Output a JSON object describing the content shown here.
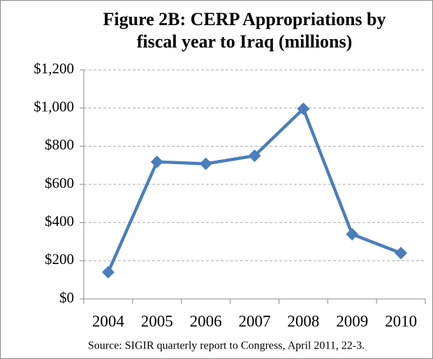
{
  "chart_data": {
    "type": "line",
    "title": [
      "Figure 2B: CERP Appropriations by",
      "fiscal year to Iraq (millions)"
    ],
    "categories": [
      "2004",
      "2005",
      "2006",
      "2007",
      "2008",
      "2009",
      "2010"
    ],
    "series": [
      {
        "name": "CERP Appropriations",
        "color": "#4a7ebb",
        "values": [
          140,
          718,
          708,
          750,
          996,
          339,
          240
        ]
      }
    ],
    "ylim": [
      0,
      1200
    ],
    "yticks": [
      {
        "value": 0,
        "label": "$0"
      },
      {
        "value": 200,
        "label": "$200"
      },
      {
        "value": 400,
        "label": "$400"
      },
      {
        "value": 600,
        "label": "$600"
      },
      {
        "value": 800,
        "label": "$800"
      },
      {
        "value": 1000,
        "label": "$1,000"
      },
      {
        "value": 1200,
        "label": "$1,200"
      }
    ],
    "grid": true,
    "source": "Source: SIGIR quarterly report to Congress, April 2011, 22-3."
  }
}
